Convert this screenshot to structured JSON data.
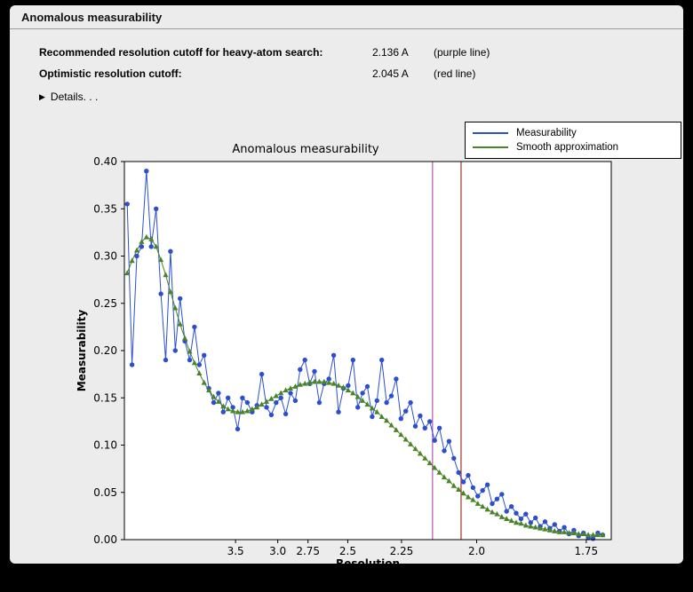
{
  "window": {
    "title": "Anomalous measurability"
  },
  "info": {
    "rows": [
      {
        "label": "Recommended resolution cutoff for heavy-atom search:",
        "value": "2.136 A",
        "note": "(purple line)"
      },
      {
        "label": "Optimistic resolution cutoff:",
        "value": "2.045 A",
        "note": "(red line)"
      }
    ],
    "details_label": "Details. . .",
    "details_icon": "right-pointing-triangle"
  },
  "chart_data": {
    "type": "line",
    "title": "Anomalous measurability",
    "xlabel": "Resolution",
    "ylabel": "Measurability",
    "grid": false,
    "x_axis": {
      "unit": "Angstrom",
      "scale": "reciprocal d-squared (resolution decreases to the right)",
      "range_dstar_sq": [
        0.004,
        0.344
      ],
      "tick_d_values": [
        3.5,
        3.0,
        2.75,
        2.5,
        2.25,
        2.0,
        1.75
      ],
      "tick_labels": [
        "3.5",
        "3.0",
        "2.75",
        "2.5",
        "2.25",
        "2.0",
        "1.75"
      ]
    },
    "y_axis": {
      "range": [
        0.0,
        0.4
      ],
      "ticks": [
        0.0,
        0.05,
        0.1,
        0.15,
        0.2,
        0.25,
        0.3,
        0.35,
        0.4
      ],
      "tick_labels": [
        "0.00",
        "0.05",
        "0.10",
        "0.15",
        "0.20",
        "0.25",
        "0.30",
        "0.35",
        "0.40"
      ]
    },
    "x_points_dstar_sq": {
      "start": 0.006,
      "end": 0.338,
      "count": 100
    },
    "series": [
      {
        "name": "Measurability",
        "color": "#2c4fd0",
        "marker": "circle",
        "values": [
          0.355,
          0.185,
          0.3,
          0.31,
          0.39,
          0.31,
          0.35,
          0.26,
          0.19,
          0.305,
          0.2,
          0.255,
          0.21,
          0.19,
          0.225,
          0.185,
          0.195,
          0.16,
          0.145,
          0.155,
          0.135,
          0.15,
          0.14,
          0.117,
          0.15,
          0.145,
          0.135,
          0.142,
          0.175,
          0.14,
          0.132,
          0.145,
          0.15,
          0.133,
          0.155,
          0.147,
          0.18,
          0.19,
          0.165,
          0.178,
          0.145,
          0.165,
          0.17,
          0.195,
          0.135,
          0.16,
          0.163,
          0.19,
          0.14,
          0.155,
          0.162,
          0.13,
          0.147,
          0.19,
          0.145,
          0.152,
          0.17,
          0.128,
          0.136,
          0.145,
          0.12,
          0.131,
          0.118,
          0.125,
          0.105,
          0.118,
          0.094,
          0.104,
          0.086,
          0.071,
          0.061,
          0.068,
          0.055,
          0.046,
          0.052,
          0.058,
          0.038,
          0.043,
          0.048,
          0.03,
          0.035,
          0.028,
          0.022,
          0.027,
          0.018,
          0.023,
          0.014,
          0.019,
          0.012,
          0.016,
          0.009,
          0.013,
          0.006,
          0.01,
          0.004,
          0.007,
          0.002,
          0.001,
          0.007,
          0.005
        ]
      },
      {
        "name": "Smooth approximation",
        "color": "#4a8428",
        "marker": "triangle",
        "values": [
          0.282,
          0.295,
          0.306,
          0.315,
          0.32,
          0.318,
          0.31,
          0.296,
          0.28,
          0.262,
          0.245,
          0.228,
          0.213,
          0.199,
          0.187,
          0.176,
          0.166,
          0.158,
          0.151,
          0.146,
          0.141,
          0.138,
          0.136,
          0.135,
          0.135,
          0.136,
          0.138,
          0.14,
          0.143,
          0.146,
          0.149,
          0.152,
          0.155,
          0.158,
          0.16,
          0.162,
          0.164,
          0.165,
          0.166,
          0.167,
          0.167,
          0.167,
          0.166,
          0.165,
          0.163,
          0.161,
          0.158,
          0.155,
          0.151,
          0.147,
          0.143,
          0.139,
          0.135,
          0.13,
          0.126,
          0.121,
          0.116,
          0.111,
          0.106,
          0.101,
          0.096,
          0.091,
          0.086,
          0.081,
          0.076,
          0.071,
          0.066,
          0.062,
          0.057,
          0.053,
          0.049,
          0.045,
          0.042,
          0.038,
          0.035,
          0.032,
          0.029,
          0.027,
          0.024,
          0.022,
          0.02,
          0.018,
          0.017,
          0.015,
          0.014,
          0.013,
          0.012,
          0.011,
          0.01,
          0.009,
          0.008,
          0.008,
          0.007,
          0.007,
          0.006,
          0.006,
          0.005,
          0.005,
          0.005,
          0.005
        ]
      }
    ],
    "vlines": [
      {
        "label": "purple line",
        "resolution_A": 2.136,
        "color": "#b355b3"
      },
      {
        "label": "red line",
        "resolution_A": 2.045,
        "color": "#a03527"
      }
    ],
    "legend": {
      "position": "upper right, above axes",
      "entries": [
        "Measurability",
        "Smooth approximation"
      ]
    }
  }
}
